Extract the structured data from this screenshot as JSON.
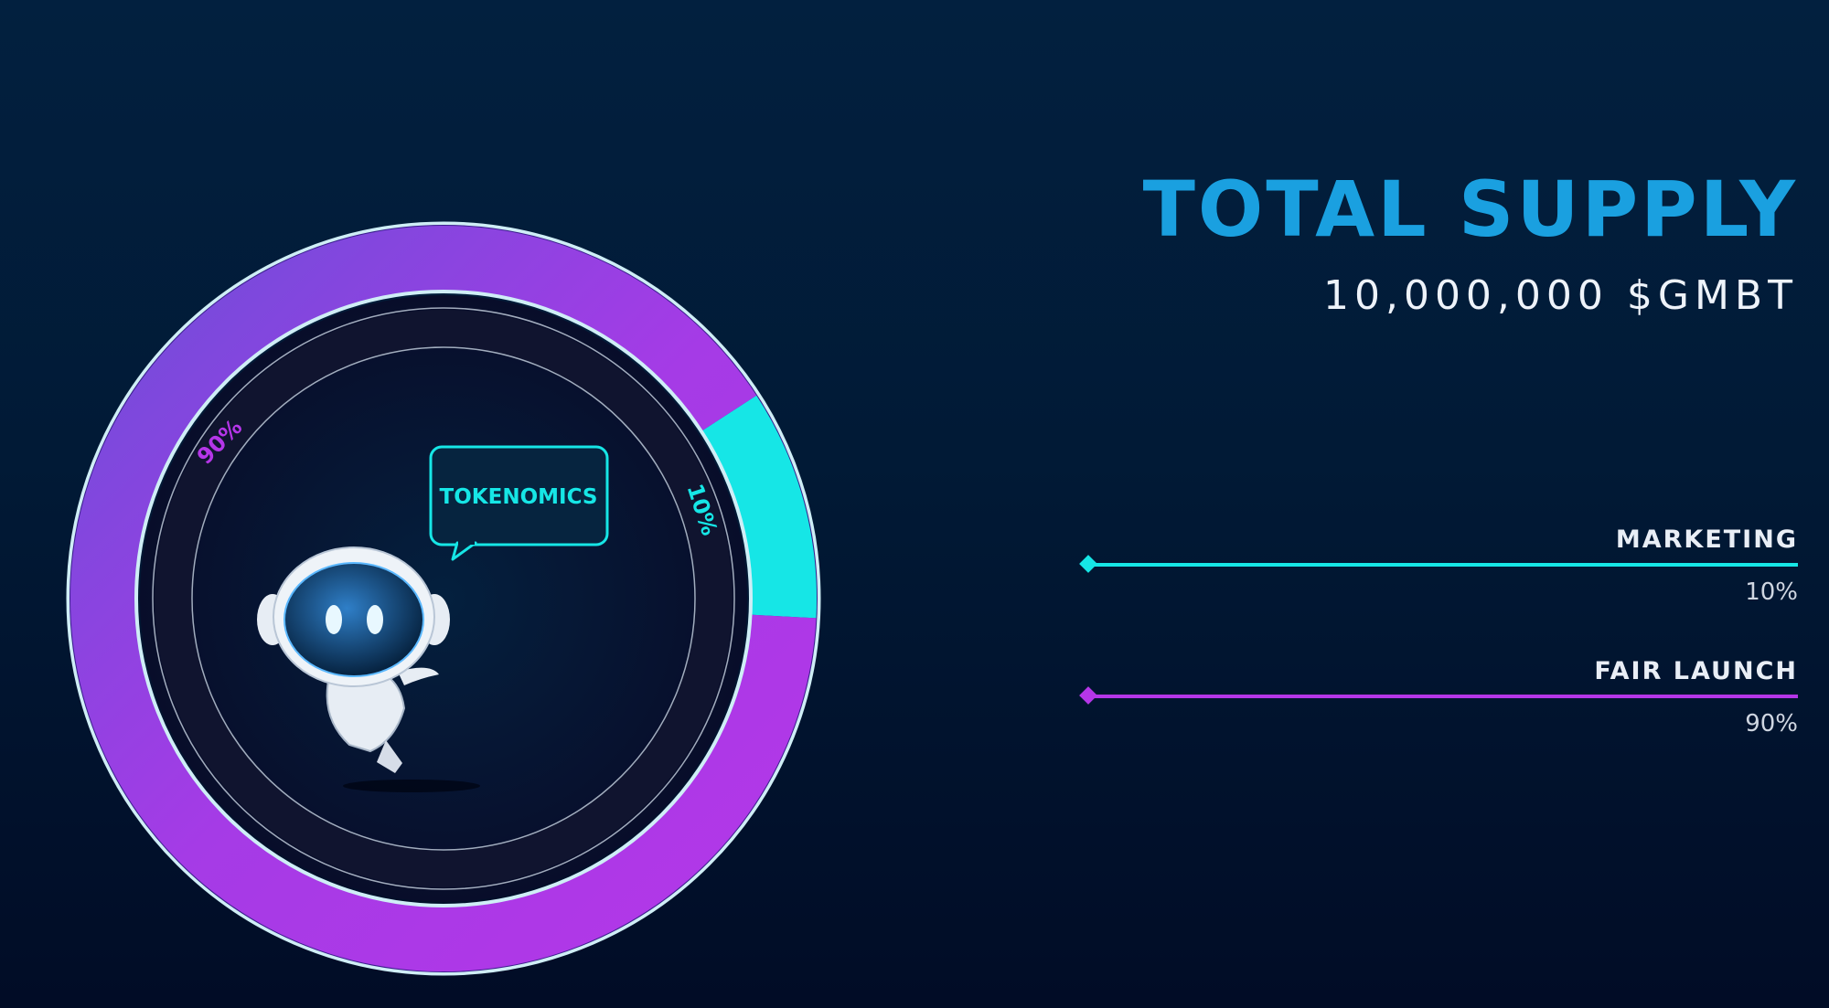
{
  "header": {
    "title": "TOTAL SUPPLY",
    "supply": "10,000,000 $GMBT"
  },
  "speech_bubble": "TOKENOMICS",
  "colors": {
    "title": "#1aa0e0",
    "marketing": "#16e6e6",
    "fair_launch": "#b536e8",
    "ring_border": "#cfeef6"
  },
  "legend": [
    {
      "label": "MARKETING",
      "value": "10%"
    },
    {
      "label": "FAIR LAUNCH",
      "value": "90%"
    }
  ],
  "chart_data": {
    "type": "pie",
    "title": "TOKENOMICS",
    "categories": [
      "Marketing",
      "Fair Launch"
    ],
    "values": [
      10,
      90
    ],
    "labels": [
      "10%",
      "90%"
    ]
  }
}
